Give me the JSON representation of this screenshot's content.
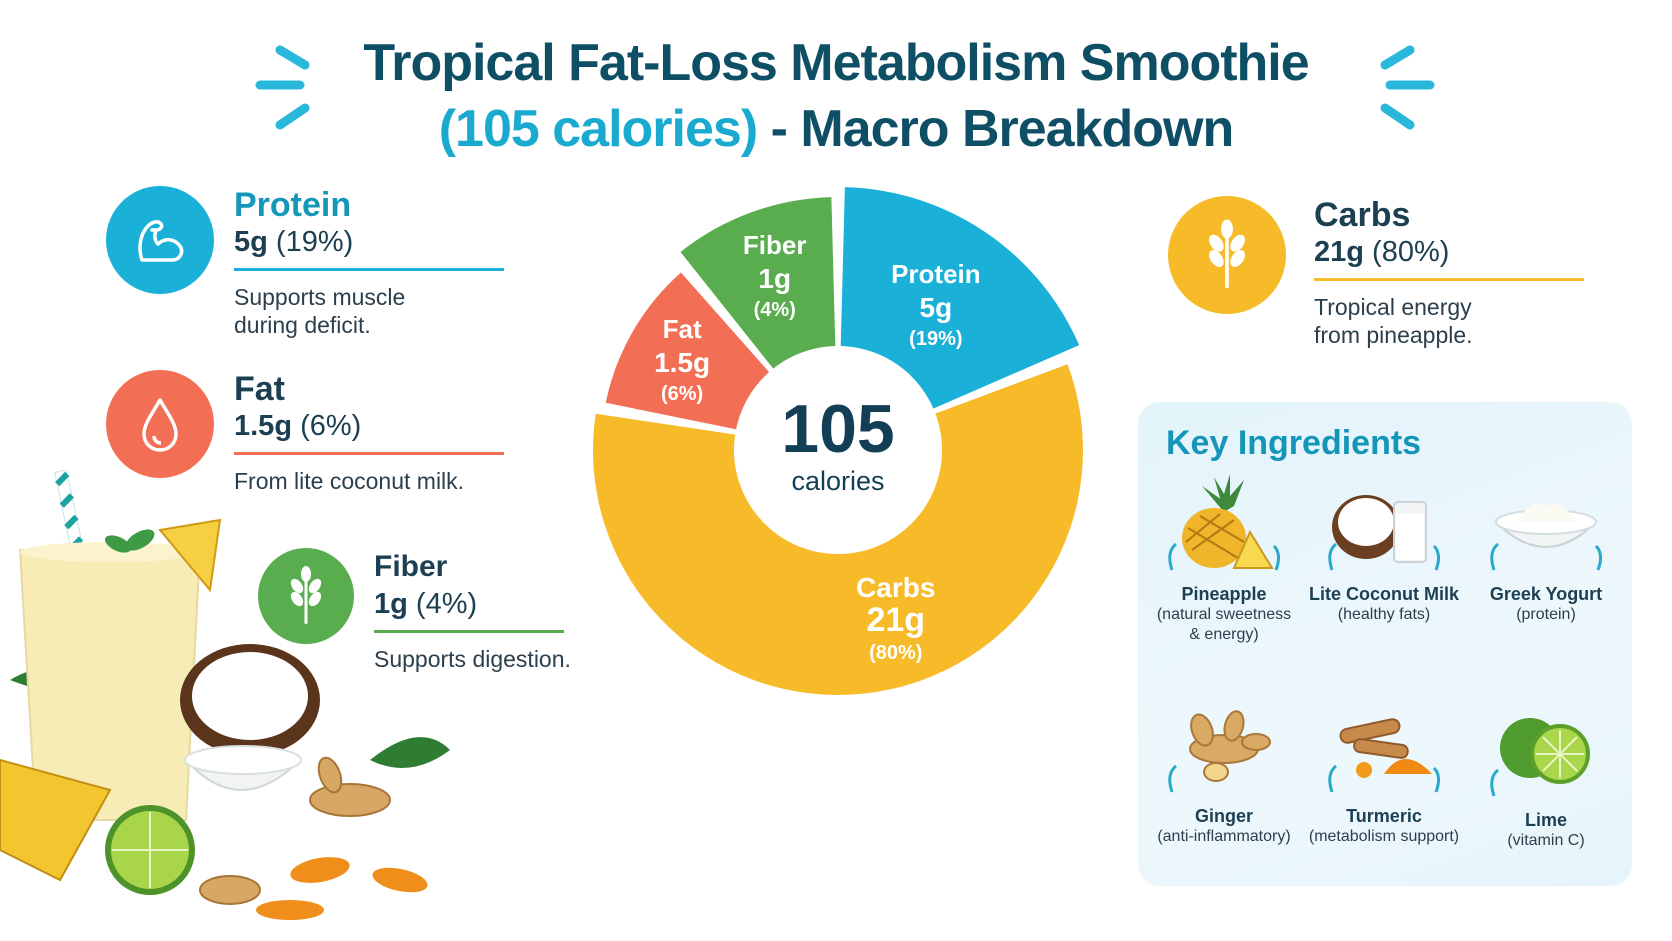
{
  "title": {
    "line1": "Tropical Fat-Loss Metabolism Smoothie",
    "line2_highlight": "(105 calories)",
    "line2_rest": " - Macro Breakdown"
  },
  "macros": {
    "protein": {
      "name": "Protein",
      "grams": "5g",
      "pct": "(19%)",
      "desc_line1": "Supports muscle",
      "desc_line2": "during deficit.",
      "color": "#1ab0d8",
      "icon": "muscle-arm-icon"
    },
    "fat": {
      "name": "Fat",
      "grams": "1.5g",
      "pct": "(6%)",
      "desc_line1": "From lite coconut milk.",
      "desc_line2": "",
      "color": "#f26f55",
      "icon": "drop-icon"
    },
    "fiber": {
      "name": "Fiber",
      "grams": "1g",
      "pct": "(4%)",
      "desc_line1": "Supports digestion.",
      "desc_line2": "",
      "color": "#5aad4e",
      "icon": "wheat-icon"
    },
    "carbs": {
      "name": "Carbs",
      "grams": "21g",
      "pct": "(80%)",
      "desc_line1": "Tropical energy",
      "desc_line2": "from pineapple.",
      "color": "#f7bb2a",
      "icon": "wheat-icon"
    }
  },
  "chart_data": {
    "type": "pie",
    "title": "",
    "center_value": "105",
    "center_label": "calories",
    "slices": [
      {
        "name": "Protein",
        "label_value": "5g",
        "label_pct": "(19%)",
        "percent": 19,
        "color": "#1ab0d8",
        "icon": "muscle-arm-icon"
      },
      {
        "name": "Carbs",
        "label_value": "21g",
        "label_pct": "(80%)",
        "percent": 80,
        "color": "#f7bb2a",
        "icon": "wheat-icon"
      },
      {
        "name": "Fat",
        "label_value": "1.5g",
        "label_pct": "(6%)",
        "percent": 6,
        "color": "#f26f55",
        "icon": "drop-icon"
      },
      {
        "name": "Fiber",
        "label_value": "1g",
        "label_pct": "(4%)",
        "percent": 4,
        "color": "#5aad4e",
        "icon": "leaf-icon"
      }
    ]
  },
  "ingredients": {
    "title": "Key Ingredients",
    "items": [
      {
        "name": "Pineapple",
        "note_line1": "(natural sweetness",
        "note_line2": "& energy)",
        "icon": "pineapple-icon"
      },
      {
        "name": "Lite Coconut Milk",
        "note_line1": "(healthy fats)",
        "note_line2": "",
        "icon": "coconut-icon"
      },
      {
        "name": "Greek Yogurt",
        "note_line1": "(protein)",
        "note_line2": "",
        "icon": "yogurt-icon"
      },
      {
        "name": "Ginger",
        "note_line1": "(anti-inflammatory)",
        "note_line2": "",
        "icon": "ginger-icon"
      },
      {
        "name": "Turmeric",
        "note_line1": "(metabolism support)",
        "note_line2": "",
        "icon": "turmeric-icon"
      },
      {
        "name": "Lime",
        "note_line1": "(vitamin C)",
        "note_line2": "",
        "icon": "lime-icon"
      }
    ]
  }
}
